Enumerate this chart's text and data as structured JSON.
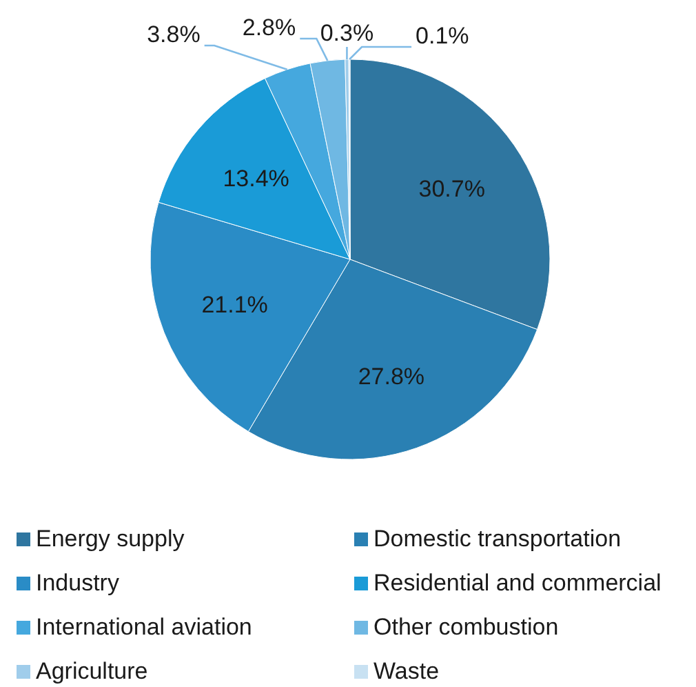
{
  "chart_data": {
    "type": "pie",
    "categories": [
      "Energy supply",
      "Domestic transportation",
      "Industry",
      "Residential and commercial",
      "International aviation",
      "Other combustion",
      "Agriculture",
      "Waste"
    ],
    "values": [
      30.7,
      27.8,
      21.1,
      13.4,
      3.8,
      2.8,
      0.3,
      0.1
    ],
    "value_labels": [
      "30.7%",
      "27.8%",
      "21.1%",
      "13.4%",
      "3.8%",
      "2.8%",
      "0.3%",
      "0.1%"
    ],
    "colors": [
      "#2f76a0",
      "#2a80b3",
      "#2a8cc6",
      "#1a9bd7",
      "#45a8de",
      "#6fb8e3",
      "#a0cdeb",
      "#c8e1f2"
    ],
    "legend": "bottom"
  }
}
